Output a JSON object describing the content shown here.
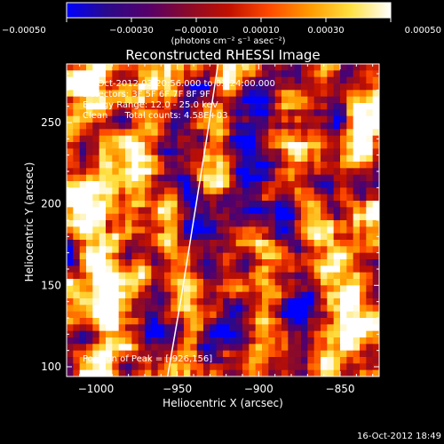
{
  "chart_data": {
    "type": "heatmap",
    "title": "Reconstructed RHESSI Image",
    "xlabel": "Heliocentric X (arcsec)",
    "ylabel": "Heliocentric Y (arcsec)",
    "xlim": [
      -1018,
      -826
    ],
    "ylim": [
      94,
      286
    ],
    "x_ticks": [
      -1000,
      -950,
      -900,
      -850
    ],
    "y_ticks": [
      100,
      150,
      200,
      250
    ],
    "x_tick_labels": [
      "−1000",
      "−950",
      "−900",
      "−850"
    ],
    "y_tick_labels": [
      "100",
      "150",
      "200",
      "250"
    ],
    "colorbar": {
      "min": -0.0005,
      "max": 0.0005,
      "ticks": [
        -0.0005,
        -0.0003,
        -0.0001,
        0.0001,
        0.0003,
        0.0005
      ],
      "tick_labels": [
        "−0.00050",
        "−0.00030",
        "−0.00010",
        "0.00010",
        "0.00030",
        "0.00050"
      ],
      "units_label": "(photons cm⁻² s⁻¹ asec⁻²)",
      "colors": [
        "#0000ff",
        "#2a0a8a",
        "#55006a",
        "#8a0a2a",
        "#c01000",
        "#ff4a00",
        "#ff9a00",
        "#ffe040",
        "#ffffff"
      ]
    },
    "limb_curve": {
      "x": [
        -956,
        -948,
        -940,
        -932,
        -925
      ],
      "y": [
        94,
        140,
        190,
        240,
        286
      ]
    },
    "peak": {
      "x": -926,
      "y": 156
    },
    "annotations": {
      "time_range": "16-Oct-2012 03:20:56.000 to 03:24:00.000",
      "detectors": "Detectors: 3F 5F 6F 7F 8F 9F",
      "energy_range": "Energy Range: 12.0 - 25.0 keV",
      "algorithm": "Clean      Total counts: 4.58E+03",
      "peak_label": "Position of Peak = [-926,156]"
    },
    "timestamp": "16-Oct-2012 18:49"
  }
}
